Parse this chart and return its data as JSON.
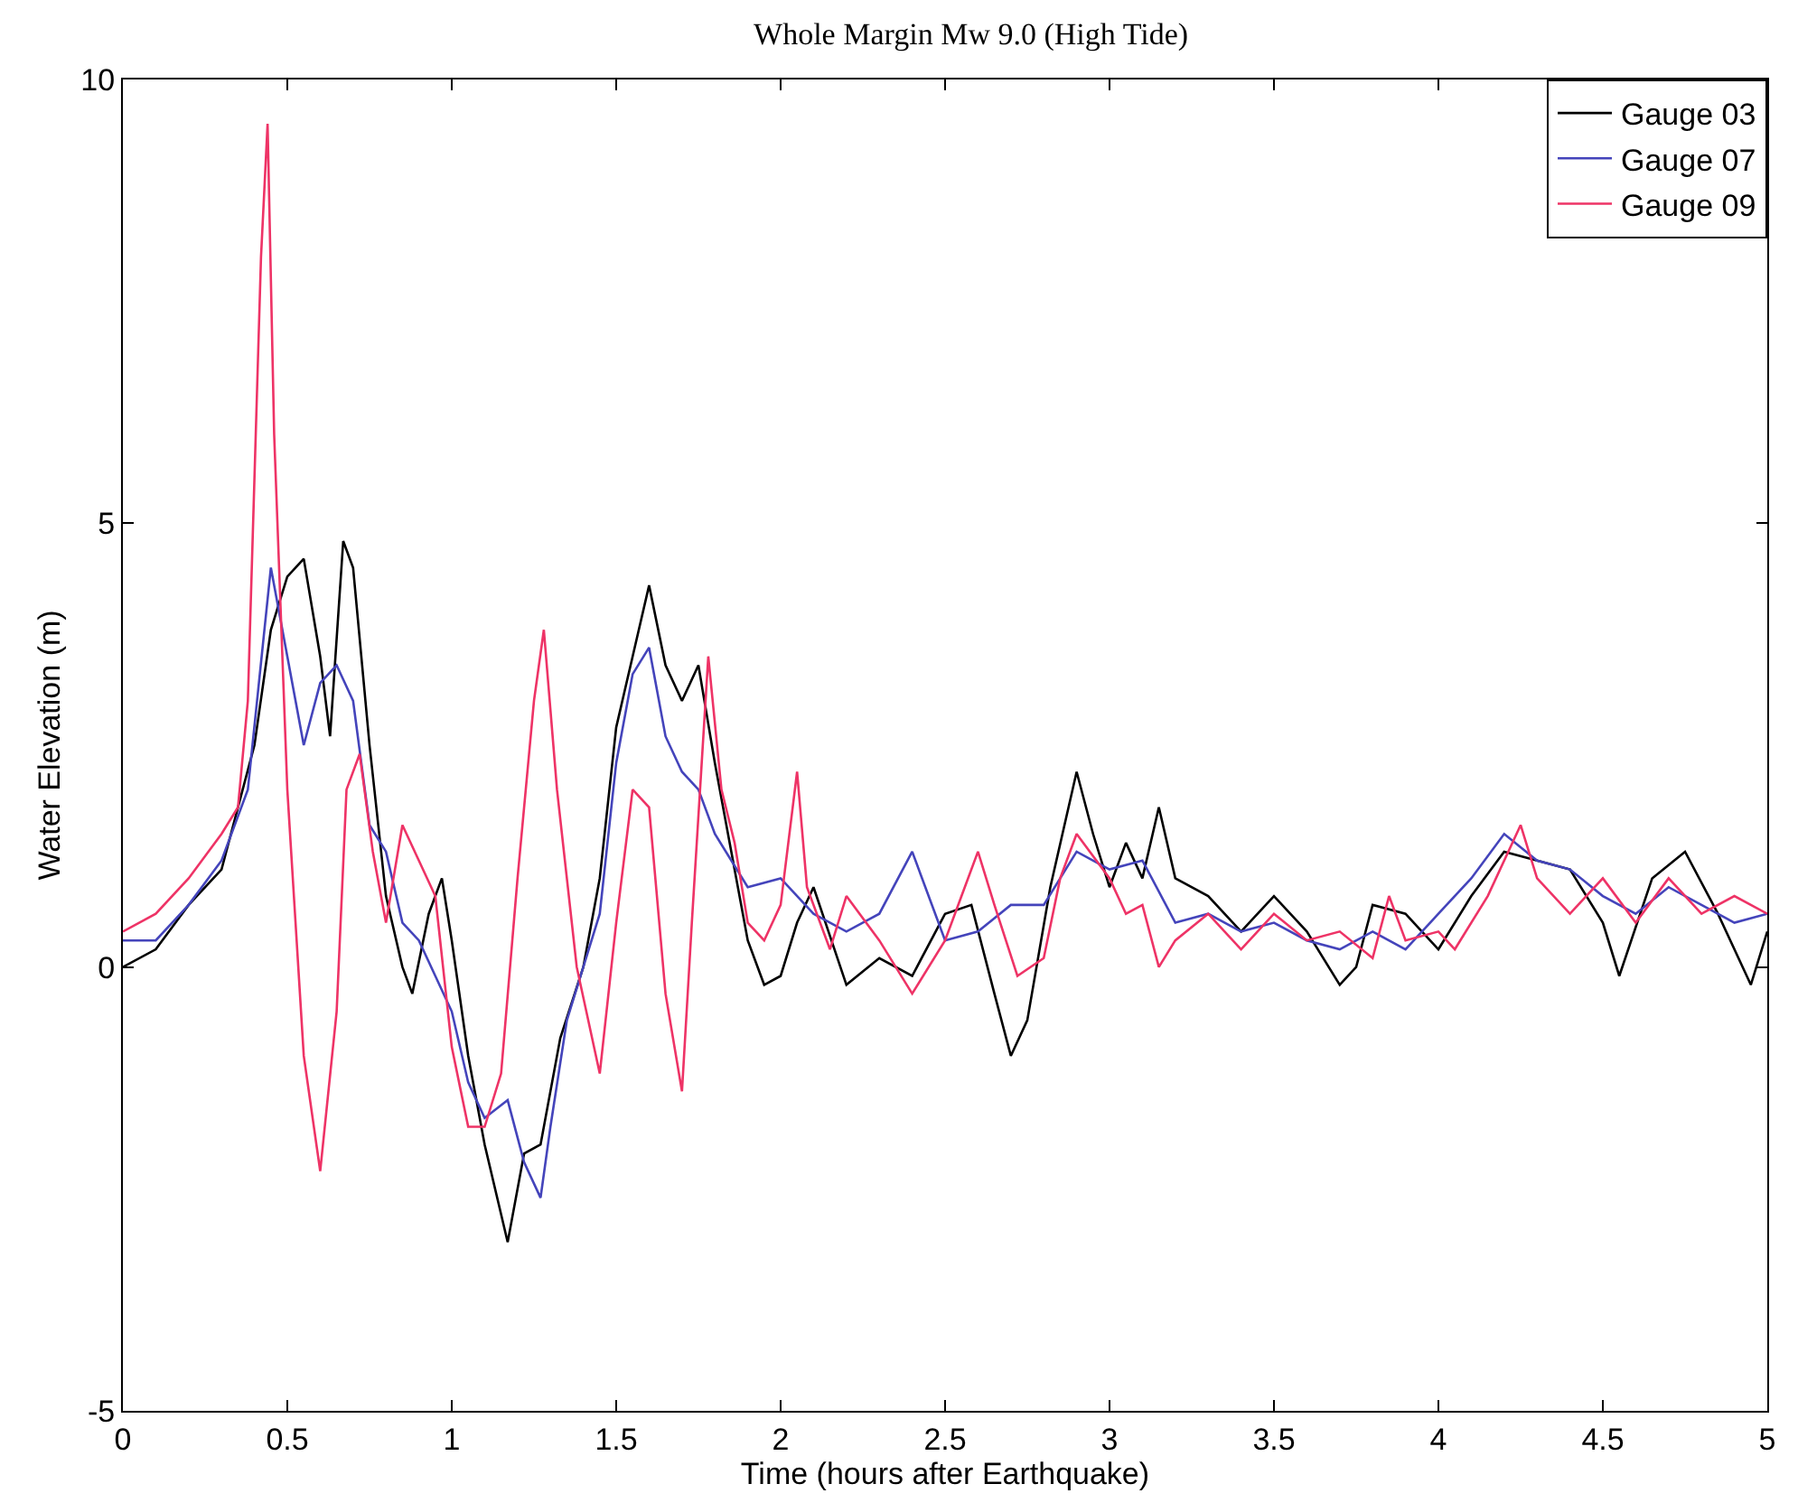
{
  "chart_data": {
    "type": "line",
    "title": "Whole Margin Mw 9.0 (High Tide)",
    "xlabel": "Time (hours after Earthquake)",
    "ylabel": "Water Elevation (m)",
    "xlim": [
      0,
      5
    ],
    "xticks": [
      0,
      0.5,
      1,
      1.5,
      2,
      2.5,
      3,
      3.5,
      4,
      4.5,
      5
    ],
    "ylim": [
      -5,
      10
    ],
    "yticks": [
      -5,
      0,
      5,
      10
    ],
    "grid": false,
    "legend": "top right",
    "marker": "none",
    "line_style": "solid",
    "series": [
      {
        "name": "Gauge 03",
        "color": "#000000",
        "x": [
          0,
          0.1,
          0.2,
          0.3,
          0.4,
          0.45,
          0.5,
          0.55,
          0.6,
          0.63,
          0.67,
          0.7,
          0.75,
          0.8,
          0.85,
          0.88,
          0.93,
          0.97,
          1.0,
          1.05,
          1.1,
          1.17,
          1.22,
          1.27,
          1.33,
          1.4,
          1.45,
          1.5,
          1.55,
          1.6,
          1.65,
          1.7,
          1.75,
          1.8,
          1.85,
          1.9,
          1.95,
          2.0,
          2.05,
          2.1,
          2.2,
          2.3,
          2.4,
          2.5,
          2.58,
          2.65,
          2.7,
          2.75,
          2.82,
          2.9,
          2.95,
          3.0,
          3.05,
          3.1,
          3.15,
          3.2,
          3.3,
          3.4,
          3.5,
          3.6,
          3.7,
          3.75,
          3.8,
          3.9,
          4.0,
          4.1,
          4.2,
          4.3,
          4.4,
          4.5,
          4.55,
          4.65,
          4.75,
          4.85,
          4.95,
          5.0
        ],
        "values": [
          0,
          0.2,
          0.7,
          1.1,
          2.5,
          3.8,
          4.4,
          4.6,
          3.5,
          2.6,
          4.8,
          4.5,
          2.5,
          0.8,
          0,
          -0.3,
          0.6,
          1,
          0.3,
          -1,
          -2,
          -3.1,
          -2.1,
          -2,
          -0.8,
          0,
          1,
          2.7,
          3.5,
          4.3,
          3.4,
          3,
          3.4,
          2.3,
          1.3,
          0.3,
          -0.2,
          -0.1,
          0.5,
          0.9,
          -0.2,
          0.1,
          -0.1,
          0.6,
          0.7,
          -0.3,
          -1,
          -0.6,
          0.9,
          2.2,
          1.5,
          0.9,
          1.4,
          1,
          1.8,
          1,
          0.8,
          0.4,
          0.8,
          0.4,
          -0.2,
          0,
          0.7,
          0.6,
          0.2,
          0.8,
          1.3,
          1.2,
          1.1,
          0.5,
          -0.1,
          1,
          1.3,
          0.6,
          -0.2,
          0.4
        ]
      },
      {
        "name": "Gauge 07",
        "color": "#4444bb",
        "x": [
          0,
          0.1,
          0.2,
          0.3,
          0.38,
          0.45,
          0.5,
          0.55,
          0.6,
          0.65,
          0.7,
          0.75,
          0.8,
          0.85,
          0.9,
          1.0,
          1.05,
          1.1,
          1.17,
          1.22,
          1.27,
          1.3,
          1.35,
          1.4,
          1.45,
          1.5,
          1.55,
          1.6,
          1.65,
          1.7,
          1.75,
          1.8,
          1.9,
          2.0,
          2.1,
          2.2,
          2.3,
          2.4,
          2.5,
          2.6,
          2.7,
          2.8,
          2.9,
          3.0,
          3.1,
          3.2,
          3.3,
          3.4,
          3.5,
          3.6,
          3.7,
          3.8,
          3.9,
          4.0,
          4.1,
          4.2,
          4.3,
          4.4,
          4.5,
          4.6,
          4.7,
          4.8,
          4.9,
          5.0
        ],
        "values": [
          0.3,
          0.3,
          0.7,
          1.2,
          2,
          4.5,
          3.5,
          2.5,
          3.2,
          3.4,
          3,
          1.6,
          1.3,
          0.5,
          0.3,
          -0.5,
          -1.3,
          -1.7,
          -1.5,
          -2.2,
          -2.6,
          -1.8,
          -0.6,
          0,
          0.6,
          2.3,
          3.3,
          3.6,
          2.6,
          2.2,
          2,
          1.5,
          0.9,
          1,
          0.6,
          0.4,
          0.6,
          1.3,
          0.3,
          0.4,
          0.7,
          0.7,
          1.3,
          1.1,
          1.2,
          0.5,
          0.6,
          0.4,
          0.5,
          0.3,
          0.2,
          0.4,
          0.2,
          0.6,
          1,
          1.5,
          1.2,
          1.1,
          0.8,
          0.6,
          0.9,
          0.7,
          0.5,
          0.6
        ]
      },
      {
        "name": "Gauge 09",
        "color": "#ee3366",
        "x": [
          0,
          0.1,
          0.2,
          0.3,
          0.35,
          0.38,
          0.42,
          0.44,
          0.46,
          0.5,
          0.55,
          0.6,
          0.65,
          0.68,
          0.72,
          0.76,
          0.8,
          0.85,
          0.9,
          0.95,
          1.0,
          1.05,
          1.1,
          1.15,
          1.2,
          1.25,
          1.28,
          1.32,
          1.38,
          1.45,
          1.5,
          1.55,
          1.6,
          1.65,
          1.7,
          1.73,
          1.78,
          1.82,
          1.86,
          1.9,
          1.95,
          2.0,
          2.05,
          2.08,
          2.15,
          2.2,
          2.3,
          2.4,
          2.5,
          2.55,
          2.6,
          2.65,
          2.72,
          2.8,
          2.85,
          2.9,
          3.0,
          3.05,
          3.1,
          3.15,
          3.2,
          3.3,
          3.4,
          3.5,
          3.6,
          3.7,
          3.8,
          3.85,
          3.9,
          4.0,
          4.05,
          4.15,
          4.25,
          4.3,
          4.4,
          4.5,
          4.6,
          4.7,
          4.8,
          4.9,
          5.0
        ],
        "values": [
          0.4,
          0.6,
          1,
          1.5,
          1.8,
          3,
          8,
          9.5,
          6,
          2,
          -1,
          -2.3,
          -0.5,
          2,
          2.4,
          1.3,
          0.5,
          1.6,
          1.2,
          0.8,
          -0.9,
          -1.8,
          -1.8,
          -1.2,
          1,
          3,
          3.8,
          2,
          0,
          -1.2,
          0.5,
          2,
          1.8,
          -0.3,
          -1.4,
          0.5,
          3.5,
          2,
          1.4,
          0.5,
          0.3,
          0.7,
          2.2,
          0.9,
          0.2,
          0.8,
          0.3,
          -0.3,
          0.3,
          0.8,
          1.3,
          0.7,
          -0.1,
          0.1,
          1,
          1.5,
          1,
          0.6,
          0.7,
          0,
          0.3,
          0.6,
          0.2,
          0.6,
          0.3,
          0.4,
          0.1,
          0.8,
          0.3,
          0.4,
          0.2,
          0.8,
          1.6,
          1,
          0.6,
          1,
          0.5,
          1,
          0.6,
          0.8,
          0.6
        ]
      }
    ]
  }
}
